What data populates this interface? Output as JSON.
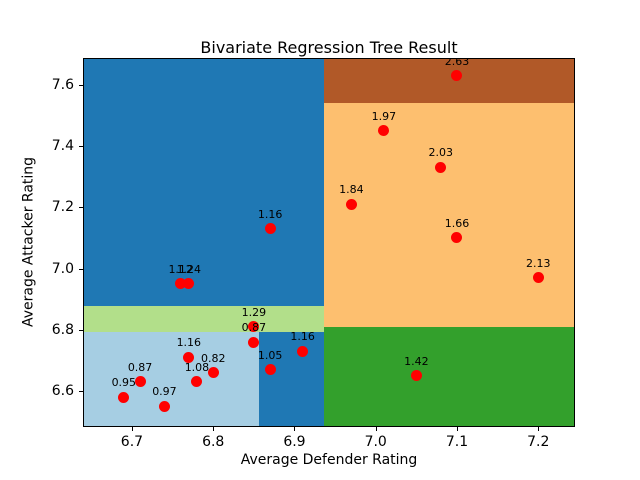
{
  "window": {
    "background": "#ffffff",
    "spine_color": "#000000"
  },
  "chart_data": {
    "type": "scatter",
    "title": "Bivariate Regression Tree Result",
    "xlabel": "Average Defender Rating",
    "ylabel": "Average Attacker Rating",
    "xlim": [
      6.641,
      7.244
    ],
    "ylim": [
      6.486,
      7.684
    ],
    "xticks": [
      6.7,
      6.8,
      6.9,
      7.0,
      7.1,
      7.2
    ],
    "yticks": [
      6.6,
      6.8,
      7.0,
      7.2,
      7.4,
      7.6
    ],
    "grid": false,
    "legend": "none",
    "point_color": "#ff0000",
    "label_color": "#000000",
    "regions": [
      {
        "name": "region-left-upper-blue",
        "x0": 6.641,
        "x1": 6.936,
        "y0": 6.878,
        "y1": 7.684,
        "color": "#1f78b4"
      },
      {
        "name": "region-left-band-lightgreen",
        "x0": 6.641,
        "x1": 6.936,
        "y0": 6.792,
        "y1": 6.878,
        "color": "#b2df8a"
      },
      {
        "name": "region-left-lower-lightblue",
        "x0": 6.641,
        "x1": 6.856,
        "y0": 6.486,
        "y1": 6.792,
        "color": "#a6cee3"
      },
      {
        "name": "region-left-lower-blue",
        "x0": 6.856,
        "x1": 6.936,
        "y0": 6.486,
        "y1": 6.792,
        "color": "#1f78b4"
      },
      {
        "name": "region-right-top-brown",
        "x0": 6.936,
        "x1": 7.244,
        "y0": 7.54,
        "y1": 7.684,
        "color": "#b15928"
      },
      {
        "name": "region-right-mid-orange",
        "x0": 6.936,
        "x1": 7.244,
        "y0": 6.81,
        "y1": 7.54,
        "color": "#fdbf6f"
      },
      {
        "name": "region-right-bottom-green",
        "x0": 6.936,
        "x1": 7.244,
        "y0": 6.486,
        "y1": 6.81,
        "color": "#33a02c"
      }
    ],
    "points": [
      {
        "x": 6.69,
        "y": 6.58,
        "label": "0.95"
      },
      {
        "x": 6.71,
        "y": 6.63,
        "label": "0.87"
      },
      {
        "x": 6.74,
        "y": 6.55,
        "label": "0.97"
      },
      {
        "x": 6.77,
        "y": 6.71,
        "label": "1.16"
      },
      {
        "x": 6.78,
        "y": 6.63,
        "label": "1.08"
      },
      {
        "x": 6.8,
        "y": 6.66,
        "label": "0.82"
      },
      {
        "x": 6.85,
        "y": 6.81,
        "label": "1.29"
      },
      {
        "x": 6.85,
        "y": 6.76,
        "label": "0.87"
      },
      {
        "x": 6.87,
        "y": 6.67,
        "label": "1.05"
      },
      {
        "x": 6.91,
        "y": 6.73,
        "label": "1.16"
      },
      {
        "x": 6.76,
        "y": 6.95,
        "label": "1.12"
      },
      {
        "x": 6.77,
        "y": 6.95,
        "label": "1.24"
      },
      {
        "x": 6.87,
        "y": 7.13,
        "label": "1.16"
      },
      {
        "x": 6.97,
        "y": 7.21,
        "label": "1.84"
      },
      {
        "x": 7.01,
        "y": 7.45,
        "label": "1.97"
      },
      {
        "x": 7.08,
        "y": 7.33,
        "label": "2.03"
      },
      {
        "x": 7.1,
        "y": 7.1,
        "label": "1.66"
      },
      {
        "x": 7.1,
        "y": 7.63,
        "label": "2.63"
      },
      {
        "x": 7.2,
        "y": 6.97,
        "label": "2.13"
      },
      {
        "x": 7.05,
        "y": 6.65,
        "label": "1.42"
      }
    ]
  }
}
